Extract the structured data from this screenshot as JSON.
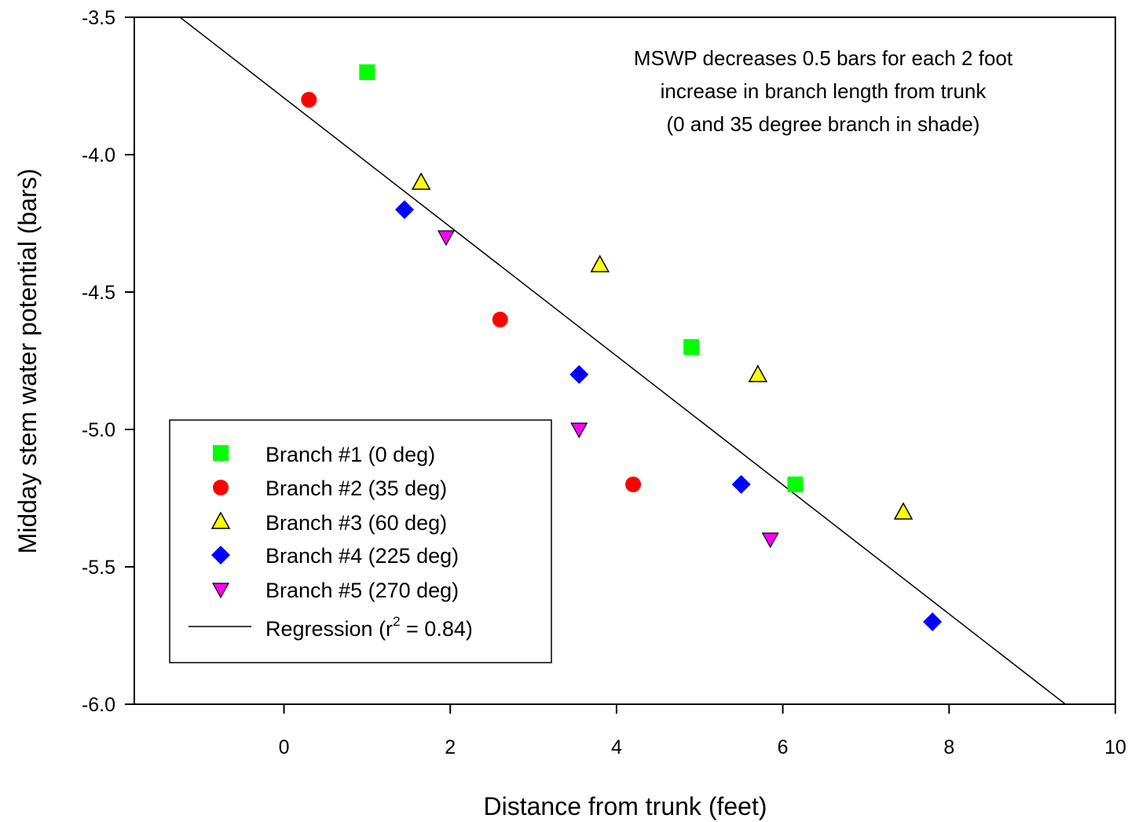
{
  "chart_data": {
    "type": "scatter",
    "xlabel": "Distance from trunk (feet)",
    "ylabel": "Midday stem water potential (bars)",
    "xlim": [
      -1.8,
      10
    ],
    "ylim": [
      -6.0,
      -3.5
    ],
    "xticks": [
      0,
      2,
      4,
      6,
      8,
      10
    ],
    "xtick_labels": [
      "0",
      "2",
      "4",
      "6",
      "8",
      "10"
    ],
    "yticks": [
      -3.5,
      -4.0,
      -4.5,
      -5.0,
      -5.5,
      -6.0
    ],
    "ytick_labels": [
      "-3.5",
      "-4.0",
      "-4.5",
      "-5.0",
      "-5.5",
      "-6.0"
    ],
    "grid": false,
    "legend_position": "bottom-left",
    "annotation": [
      "MSWP decreases 0.5 bars for each 2 foot",
      "increase in branch length from trunk",
      "(0 and 35 degree branch in shade)"
    ],
    "series": [
      {
        "name": "Branch #1 (0 deg)",
        "marker": "square",
        "color": "#00ff00",
        "x": [
          1.0,
          4.9,
          6.15
        ],
        "y": [
          -3.7,
          -4.7,
          -5.2
        ]
      },
      {
        "name": "Branch #2 (35 deg)",
        "marker": "circle",
        "color": "#ff0000",
        "x": [
          0.3,
          2.6,
          4.2
        ],
        "y": [
          -3.8,
          -4.6,
          -5.2
        ]
      },
      {
        "name": "Branch #3 (60 deg)",
        "marker": "triangle-up",
        "color": "#ffff00",
        "x": [
          1.65,
          3.8,
          5.7,
          7.45
        ],
        "y": [
          -4.1,
          -4.4,
          -4.8,
          -5.3
        ]
      },
      {
        "name": "Branch #4 (225 deg)",
        "marker": "diamond",
        "color": "#0000ff",
        "x": [
          1.45,
          3.55,
          5.5,
          7.8
        ],
        "y": [
          -4.2,
          -4.8,
          -5.2,
          -5.7
        ]
      },
      {
        "name": "Branch #5 (270 deg)",
        "marker": "triangle-down",
        "color": "#ff00ff",
        "x": [
          1.95,
          3.55,
          5.85
        ],
        "y": [
          -4.3,
          -5.0,
          -5.4
        ]
      }
    ],
    "regression": {
      "label": "Regression (r",
      "label_sup": "2",
      "label_tail": " = 0.84)",
      "color": "#000000",
      "x": [
        -1.25,
        9.4
      ],
      "y": [
        -3.5,
        -6.0
      ]
    }
  }
}
